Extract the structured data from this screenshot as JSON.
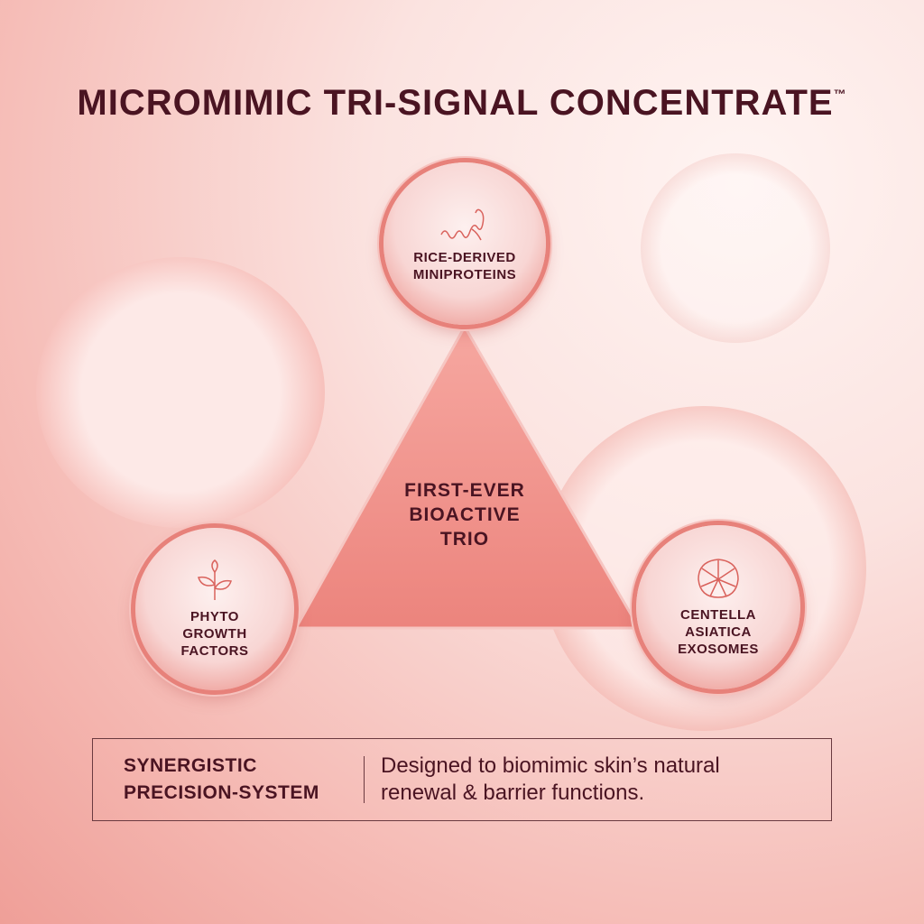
{
  "title": "MICROMIMIC TRI-SIGNAL CONCENTRATE",
  "trademark": "™",
  "center": {
    "lines": [
      "FIRST-EVER",
      "BIOACTIVE",
      "TRIO"
    ]
  },
  "ingredients": [
    {
      "icon": "protein-helix-icon",
      "lines": [
        "RICE-DERIVED",
        "MINIPROTEINS"
      ]
    },
    {
      "icon": "plant-sprout-icon",
      "lines": [
        "PHYTO",
        "GROWTH",
        "FACTORS"
      ]
    },
    {
      "icon": "centella-leaf-icon",
      "lines": [
        "CENTELLA",
        "ASIATICA",
        "EXOSOMES"
      ]
    }
  ],
  "callout": {
    "heading": [
      "SYNERGISTIC",
      "PRECISION-SYSTEM"
    ],
    "body": [
      "Designed to biomimic skin’s natural",
      "renewal & barrier functions."
    ]
  },
  "colors": {
    "text": "#4a1422",
    "accent": "#e7817a",
    "triangle": "#ef8f88"
  }
}
